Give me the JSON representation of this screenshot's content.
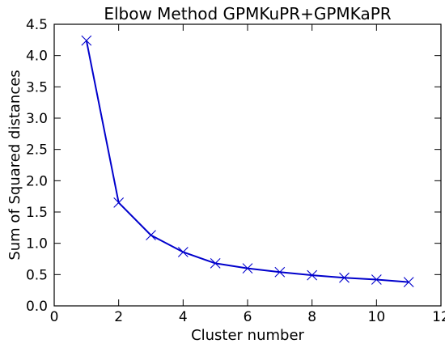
{
  "chart_data": {
    "type": "line",
    "title": "Elbow Method GPMKuPR+GPMKaPR",
    "xlabel": "Cluster number",
    "ylabel": "Sum of Squared distances",
    "xlim": [
      0,
      12
    ],
    "ylim": [
      0.0,
      4.5
    ],
    "x_ticks": [
      "0",
      "2",
      "4",
      "6",
      "8",
      "10",
      "12"
    ],
    "y_ticks": [
      "0.0",
      "0.5",
      "1.0",
      "1.5",
      "2.0",
      "2.5",
      "3.0",
      "3.5",
      "4.0",
      "4.5"
    ],
    "grid": false,
    "legend": "none",
    "series": [
      {
        "x": [
          1,
          2,
          3,
          4,
          5,
          6,
          7,
          8,
          9,
          10,
          11
        ],
        "values": [
          4.24,
          1.65,
          1.13,
          0.86,
          0.68,
          0.6,
          0.54,
          0.49,
          0.45,
          0.42,
          0.38
        ],
        "marker": "x",
        "color": "#0000cc"
      }
    ]
  }
}
